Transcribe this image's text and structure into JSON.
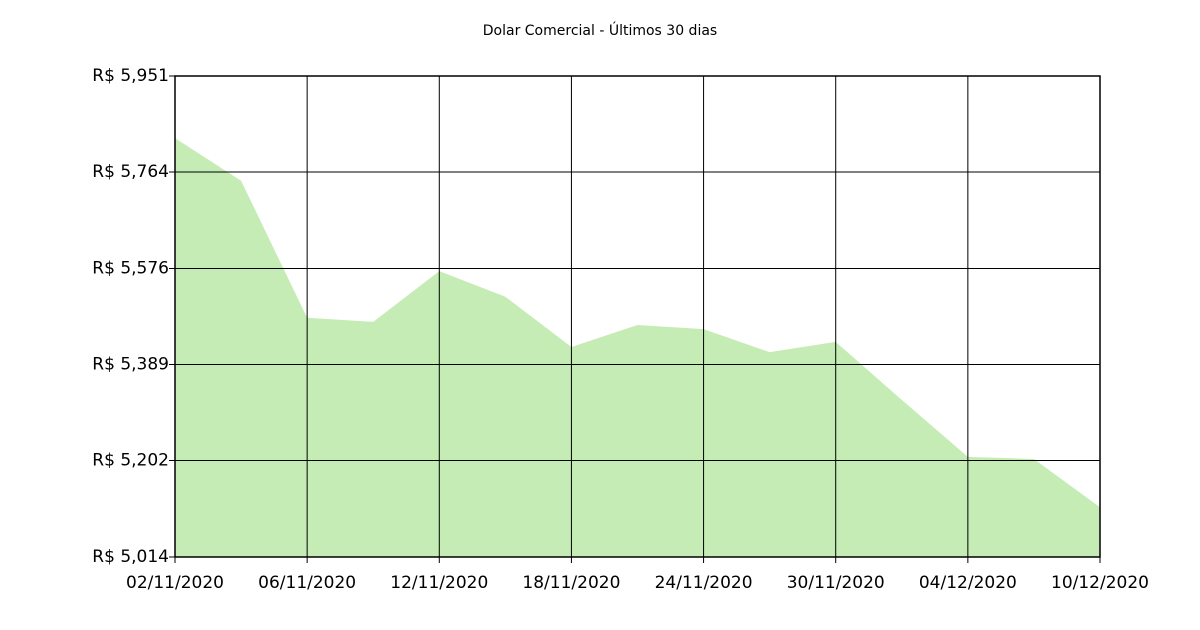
{
  "chart_data": {
    "type": "area",
    "title": "Dolar Comercial - Últimos 30 dias",
    "categories": [
      "02/11/2020",
      null,
      "06/11/2020",
      null,
      "12/11/2020",
      null,
      "18/11/2020",
      null,
      "24/11/2020",
      null,
      "30/11/2020",
      null,
      "04/12/2020",
      null,
      "10/12/2020"
    ],
    "values": [
      5.83,
      5.747,
      5.48,
      5.472,
      5.571,
      5.521,
      5.423,
      5.466,
      5.458,
      5.413,
      5.433,
      5.32,
      5.209,
      5.205,
      5.111
    ],
    "color": "#c6ecb6",
    "ylim": [
      5.014,
      5.951
    ],
    "yticks": [
      {
        "value": 5.014,
        "label": "R$ 5,014"
      },
      {
        "value": 5.202,
        "label": "R$ 5,202"
      },
      {
        "value": 5.389,
        "label": "R$ 5,389"
      },
      {
        "value": 5.576,
        "label": "R$ 5,576"
      },
      {
        "value": 5.764,
        "label": "R$ 5,764"
      },
      {
        "value": 5.951,
        "label": "R$ 5,951"
      }
    ],
    "grid": true
  }
}
